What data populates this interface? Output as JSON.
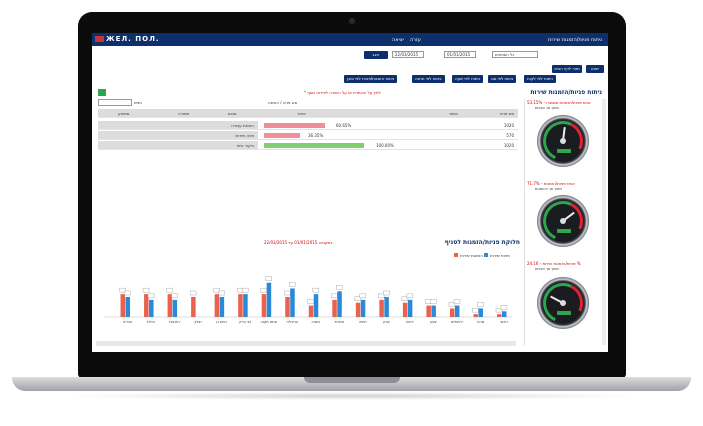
{
  "window": {
    "title": "ניתוח פניות/הזמנות שירות"
  },
  "topbar": {
    "logo": "ЖЕЛ. ПОЛ.",
    "links": [
      "יציאה",
      "עזרה"
    ],
    "title": "ניתוח פניות/הזמנות שירות"
  },
  "filters": {
    "branch_value": "כל הסניפים",
    "date_from": "01/01/2015",
    "date_to": "22/03/2015",
    "show_button": "הצג",
    "nav_buttons": [
      "חזור לדף הבית",
      "ייצוא"
    ]
  },
  "report_buttons": [
    "ניתוח הזמנות/פניות לפי סוכן",
    "ניתוח לפי תחנה",
    "ניתוח לפי שעה",
    "ניתוח לפי סוג",
    "ניתוח לפי לקוח"
  ],
  "section1": {
    "heading": "ניתוח פניות/הזמנות שירות",
    "note": "* לחץ על הכותרת או על השורה לפירוט נוסף",
    "search_label": "חפש",
    "search_value": "",
    "group_label": "סוג פניה / הזמנה",
    "columns": [
      "סוג פניה",
      "כמות",
      "אחוז",
      "סכום",
      "תמורה",
      "ממוצע"
    ],
    "rows": [
      {
        "type": "הזמנת עבודה",
        "count": "1020",
        "pct": 60.65,
        "pct_label": "60.65%",
        "color": "#f08f9a"
      },
      {
        "type": "פניה שירות",
        "count": "570",
        "pct": 36.35,
        "pct_label": "36.35%",
        "color": "#f08f9a"
      },
      {
        "type": "ביקור ביתי",
        "count": "1020",
        "pct": 100,
        "pct_label": "100.00%",
        "color": "#7fcf6f"
      }
    ]
  },
  "section2": {
    "heading": "חלוקת פניות/הזמנות לסניף",
    "period": "בתקופה 01/01/2015 עד 22/03/2015",
    "legend": [
      "פניות שירות",
      "הזמנות שירות"
    ],
    "legend_colors": [
      "#2b8ad8",
      "#e8624f"
    ]
  },
  "chart_data": {
    "type": "bar",
    "title": "חלוקת פניות/הזמנות לסניף",
    "categories": [
      "ראשי",
      "מרכז",
      "ירושלים",
      "צפון",
      "דרום",
      "שרון",
      "חיפה",
      "אשדוד",
      "נתניה",
      "הרצליה",
      "פתח תקוה",
      "בני ברק",
      "רמת גן",
      "חולון",
      "רחובות",
      "אילת",
      "טבריה"
    ],
    "series": [
      {
        "name": "הזמנות שירות",
        "values": [
          1,
          1,
          3,
          4,
          5,
          6,
          5,
          6,
          4,
          7,
          8,
          8,
          8,
          7,
          8,
          8,
          8
        ]
      },
      {
        "name": "פניות שירות",
        "values": [
          2,
          3,
          4,
          4,
          6,
          7,
          6,
          9,
          8,
          10,
          12,
          8,
          7,
          0,
          6,
          6,
          7
        ]
      }
    ],
    "ylim": [
      0,
      14
    ]
  },
  "sidebar": {
    "gauges": [
      {
        "title": "אחוז פניות/הזמנות שנסגרו - 53.15%",
        "subtitle": "מתוך סך הפניות",
        "level": 0.53
      },
      {
        "title": "אחוז פניות/הזמנות - 71.7%",
        "subtitle": "מתוך סך ההזמנות",
        "level": 0.72
      },
      {
        "title": "פניות/הזמנות שירות - 24.16 %",
        "subtitle": "מתוך סך הפניות",
        "level": 0.24
      }
    ]
  },
  "colors": {
    "brand": "#0d2f6b",
    "accent_red": "#c00",
    "bar_red": "#f08f9a",
    "bar_green": "#7fcf6f"
  }
}
